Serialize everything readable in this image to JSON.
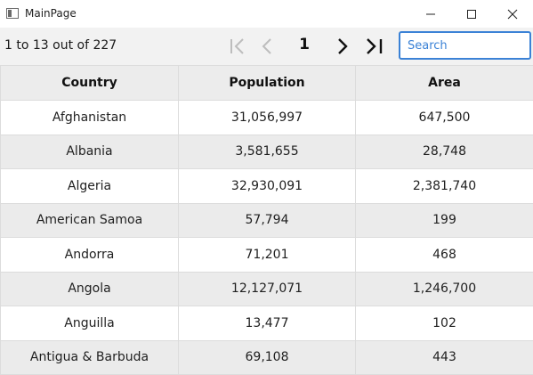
{
  "window": {
    "title": "MainPage",
    "icon": "app-window-icon",
    "controls": [
      "minimize-icon",
      "maximize-icon",
      "close-icon"
    ]
  },
  "pager": {
    "info_text": "1 to 13 out of 227",
    "current_page": "1",
    "icons": [
      "first-page-icon",
      "previous-page-icon",
      "next-page-icon",
      "last-page-icon"
    ]
  },
  "search": {
    "placeholder": "Search",
    "value": ""
  },
  "table": {
    "columns": [
      "Country",
      "Population",
      "Area"
    ],
    "rows": [
      [
        "Afghanistan",
        "31,056,997",
        "647,500"
      ],
      [
        "Albania",
        "3,581,655",
        "28,748"
      ],
      [
        "Algeria",
        "32,930,091",
        "2,381,740"
      ],
      [
        "American Samoa",
        "57,794",
        "199"
      ],
      [
        "Andorra",
        "71,201",
        "468"
      ],
      [
        "Angola",
        "12,127,071",
        "1,246,700"
      ],
      [
        "Anguilla",
        "13,477",
        "102"
      ],
      [
        "Antigua & Barbuda",
        "69,108",
        "443"
      ]
    ]
  },
  "colors": {
    "accent": "#3b82d6",
    "header_bg": "#ececec",
    "alt_row_bg": "#ebebeb",
    "toolbar_bg": "#f2f2f2"
  }
}
